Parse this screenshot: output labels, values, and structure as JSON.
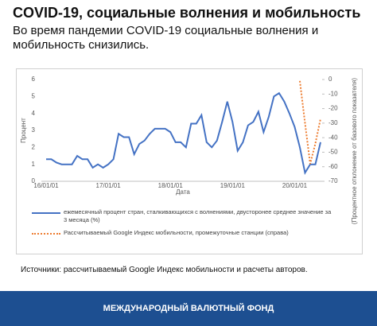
{
  "chart_data": {
    "type": "line",
    "title": "COVID-19, социальные волнения и мобильность",
    "subtitle": "Во время пандемии COVID-19 социальные волнения и мобильность снизились.",
    "x_label": "Дата",
    "y_label": "Процент",
    "y2_label": "(Процентное отклонение от базового показателя)",
    "categories": [
      "16/01/01",
      null,
      null,
      null,
      null,
      null,
      null,
      null,
      null,
      null,
      null,
      null,
      "17/01/01",
      null,
      null,
      null,
      null,
      null,
      null,
      null,
      null,
      null,
      null,
      null,
      "18/01/01",
      null,
      null,
      null,
      null,
      null,
      null,
      null,
      null,
      null,
      null,
      null,
      "19/01/01",
      null,
      null,
      null,
      null,
      null,
      null,
      null,
      null,
      null,
      null,
      null,
      "20/01/01",
      null,
      null,
      null,
      null,
      null
    ],
    "ylim": [
      0,
      6
    ],
    "yticks": [
      0,
      1,
      2,
      3,
      4,
      5,
      6
    ],
    "y2lim": [
      -70,
      0
    ],
    "y2ticks": [
      0,
      -10,
      -20,
      -30,
      -40,
      -50,
      -60,
      -70
    ],
    "series": [
      {
        "name": "ежемесячный процент стран, сталкивающихся с волнениями, двусторонее среднее значение за 3 месяца (%)",
        "color": "#4472c4",
        "style": "solid",
        "values": [
          1.3,
          1.3,
          1.1,
          1.0,
          1.0,
          1.0,
          1.5,
          1.3,
          1.3,
          0.8,
          1.0,
          0.8,
          1.0,
          1.3,
          2.8,
          2.6,
          2.6,
          1.6,
          2.2,
          2.4,
          2.8,
          3.1,
          3.1,
          3.1,
          2.9,
          2.3,
          2.3,
          2.0,
          3.4,
          3.4,
          3.9,
          2.3,
          2.0,
          2.4,
          3.5,
          4.7,
          3.5,
          1.8,
          2.3,
          3.3,
          3.5,
          4.1,
          2.9,
          3.8,
          5.0,
          5.2,
          4.7,
          4.0,
          3.2,
          2.0,
          0.5,
          1.0,
          1.0,
          2.3
        ]
      },
      {
        "name": "Рассчитываемый Google Индекс мобильности, промежуточные станции (справа)",
        "color": "#ed7d31",
        "style": "dotted",
        "axis": "y2",
        "values": [
          null,
          null,
          null,
          null,
          null,
          null,
          null,
          null,
          null,
          null,
          null,
          null,
          null,
          null,
          null,
          null,
          null,
          null,
          null,
          null,
          null,
          null,
          null,
          null,
          null,
          null,
          null,
          null,
          null,
          null,
          null,
          null,
          null,
          null,
          null,
          null,
          null,
          null,
          null,
          null,
          null,
          null,
          null,
          null,
          null,
          null,
          null,
          null,
          null,
          -1,
          -30,
          -58,
          -44,
          -27
        ]
      }
    ]
  },
  "source": "Источники: рассчитываемый Google Индекс мобильности и расчеты авторов.",
  "footer": "МЕЖДУНАРОДНЫЙ ВАЛЮТНЫЙ ФОНД"
}
